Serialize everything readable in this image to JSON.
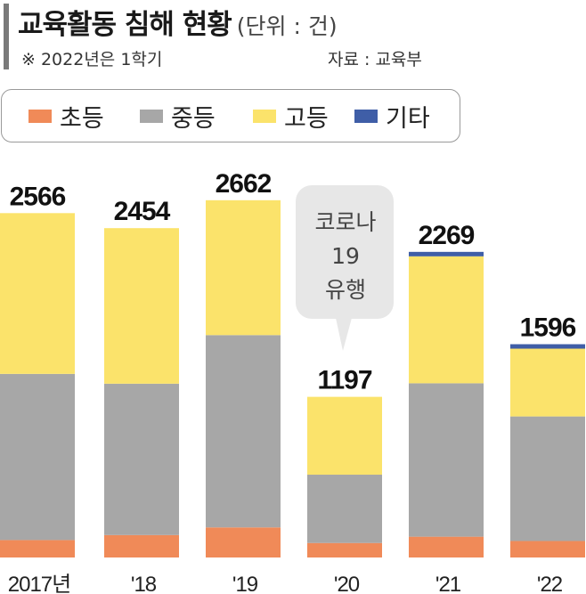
{
  "header": {
    "title": "교육활동 침해 현황",
    "unit": "(단위 : 건)",
    "note": "※ 2022년은 1학기",
    "source": "자료 : 교육부"
  },
  "colors": {
    "elementary": "#f08a58",
    "middle": "#a7a7a7",
    "high": "#fbe36b",
    "other": "#3f5ea7"
  },
  "callout": {
    "lines": [
      "코로나",
      "19",
      "유행"
    ]
  },
  "chart_data": {
    "type": "bar",
    "stacked": true,
    "categories": [
      "2017년",
      "'18",
      "'19",
      "'20",
      "'21",
      "'22"
    ],
    "totals": [
      2566,
      2454,
      2662,
      1197,
      2269,
      1596
    ],
    "series": [
      {
        "name": "초등",
        "values": [
          130,
          167,
          224,
          108,
          155,
          123
        ]
      },
      {
        "name": "중등",
        "values": [
          1238,
          1128,
          1433,
          509,
          1143,
          928
        ]
      },
      {
        "name": "고등",
        "values": [
          1198,
          1159,
          1005,
          580,
          946,
          505
        ]
      },
      {
        "name": "기타",
        "values": [
          0,
          0,
          0,
          0,
          25,
          40
        ]
      }
    ],
    "ylim": [
      0,
      2700
    ],
    "legend_position": "top",
    "grid": false
  }
}
